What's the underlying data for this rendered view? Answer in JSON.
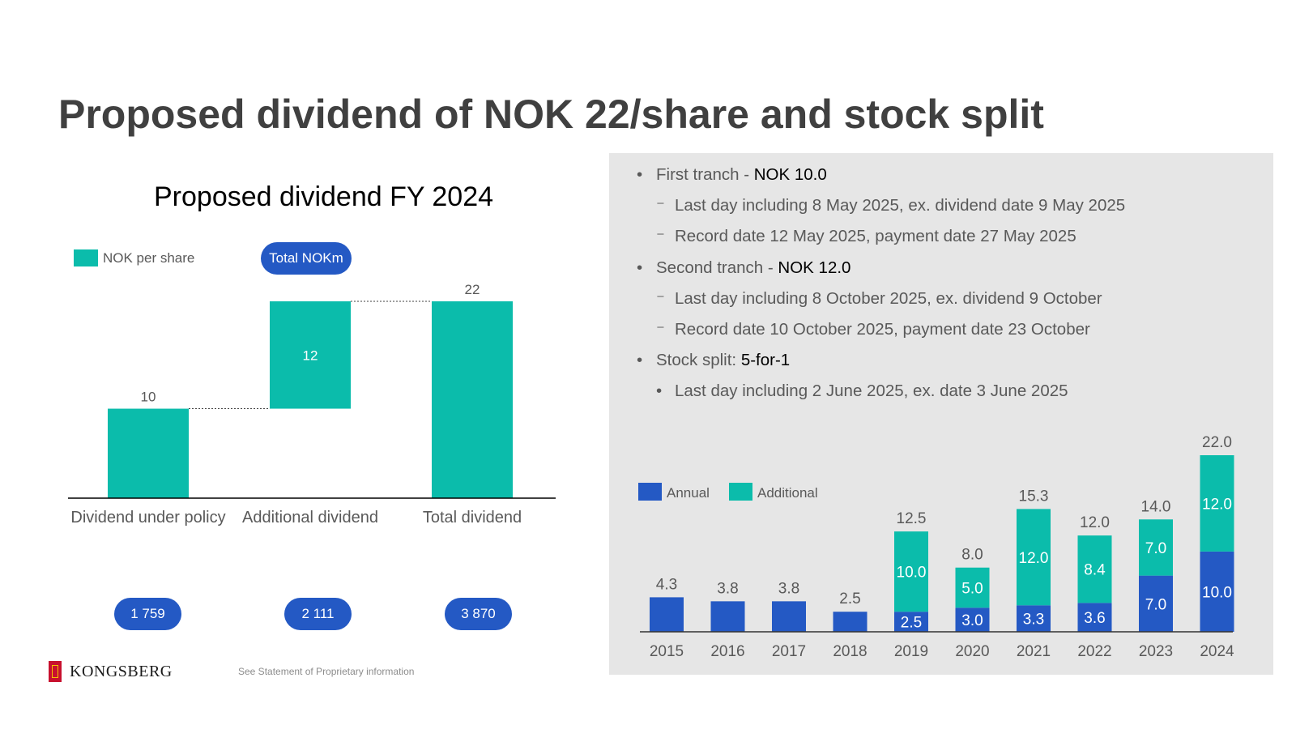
{
  "title": "Proposed dividend of NOK 22/share and stock split",
  "colors": {
    "teal": "#0bbcab",
    "blue": "#2459c4",
    "panel": "#e6e6e6",
    "text": "#404040"
  },
  "waterfall": {
    "title": "Proposed dividend FY 2024",
    "legend_label": "NOK per share",
    "pill_label": "Total NOKm",
    "totals": [
      "1 759",
      "2 111",
      "3 870"
    ]
  },
  "bullets": [
    {
      "level": 1,
      "text": "First tranch - ",
      "bold": "NOK 10.0"
    },
    {
      "level": 2,
      "text": "Last day including 8 May 2025, ex. dividend date 9 May 2025",
      "bold": ""
    },
    {
      "level": 2,
      "text": "Record date 12 May 2025, payment date 27 May 2025",
      "bold": ""
    },
    {
      "level": 1,
      "text": "Second tranch - ",
      "bold": "NOK 12.0"
    },
    {
      "level": 2,
      "text": "Last day including 8 October 2025, ex. dividend 9 October",
      "bold": ""
    },
    {
      "level": 2,
      "text": "Record date 10 October 2025, payment date 23 October",
      "bold": ""
    },
    {
      "level": 1,
      "text": "Stock split: ",
      "bold": "5-for-1"
    },
    {
      "level": 3,
      "text": "Last day including 2 June 2025, ex. date 3 June 2025",
      "bold": ""
    }
  ],
  "footer": {
    "logo": "KONGSBERG",
    "note": "See Statement of Proprietary information"
  },
  "chart_data": [
    {
      "type": "bar",
      "subtype": "waterfall",
      "title": "Proposed dividend FY 2024",
      "categories": [
        "Dividend under policy",
        "Additional dividend",
        "Total dividend"
      ],
      "values": [
        10,
        12,
        22
      ],
      "bases": [
        0,
        10,
        0
      ],
      "labels": [
        "10",
        "12",
        "22"
      ],
      "legend": [
        "NOK per share"
      ],
      "ylim": [
        0,
        22
      ]
    },
    {
      "type": "bar",
      "subtype": "stacked",
      "categories": [
        "2015",
        "2016",
        "2017",
        "2018",
        "2019",
        "2020",
        "2021",
        "2022",
        "2023",
        "2024"
      ],
      "series": [
        {
          "name": "Annual",
          "values": [
            4.3,
            3.8,
            3.8,
            2.5,
            2.5,
            3.0,
            3.3,
            3.6,
            7.0,
            10.0
          ]
        },
        {
          "name": "Additional",
          "values": [
            0,
            0,
            0,
            0,
            10.0,
            5.0,
            12.0,
            8.4,
            7.0,
            12.0
          ]
        }
      ],
      "totals": [
        4.3,
        3.8,
        3.8,
        2.5,
        12.5,
        8.0,
        15.3,
        12.0,
        14.0,
        22.0
      ],
      "ylim": [
        0,
        22
      ]
    }
  ]
}
